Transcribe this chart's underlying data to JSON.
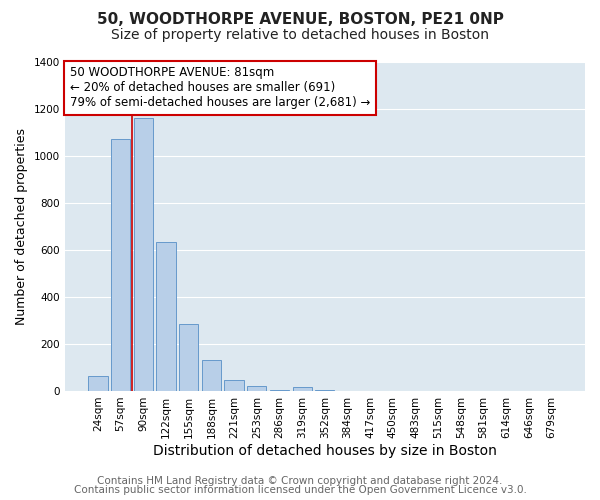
{
  "title_line1": "50, WOODTHORPE AVENUE, BOSTON, PE21 0NP",
  "title_line2": "Size of property relative to detached houses in Boston",
  "xlabel": "Distribution of detached houses by size in Boston",
  "ylabel": "Number of detached properties",
  "bar_labels": [
    "24sqm",
    "57sqm",
    "90sqm",
    "122sqm",
    "155sqm",
    "188sqm",
    "221sqm",
    "253sqm",
    "286sqm",
    "319sqm",
    "352sqm",
    "384sqm",
    "417sqm",
    "450sqm",
    "483sqm",
    "515sqm",
    "548sqm",
    "581sqm",
    "614sqm",
    "646sqm",
    "679sqm"
  ],
  "bar_values": [
    65,
    1070,
    1160,
    635,
    285,
    130,
    48,
    20,
    5,
    18,
    5,
    0,
    0,
    0,
    0,
    0,
    0,
    0,
    0,
    0,
    0
  ],
  "bar_color": "#b8cfe8",
  "bar_edge_color": "#6699cc",
  "ylim": [
    0,
    1400
  ],
  "yticks": [
    0,
    200,
    400,
    600,
    800,
    1000,
    1200,
    1400
  ],
  "vline_color": "#cc0000",
  "annotation_text": "50 WOODTHORPE AVENUE: 81sqm\n← 20% of detached houses are smaller (691)\n79% of semi-detached houses are larger (2,681) →",
  "annotation_box_facecolor": "#ffffff",
  "annotation_box_edgecolor": "#cc0000",
  "footer_line1": "Contains HM Land Registry data © Crown copyright and database right 2024.",
  "footer_line2": "Contains public sector information licensed under the Open Government Licence v3.0.",
  "fig_bg_color": "#ffffff",
  "plot_bg_color": "#dde8f0",
  "grid_color": "#ffffff",
  "title_fontsize": 11,
  "subtitle_fontsize": 10,
  "xlabel_fontsize": 10,
  "ylabel_fontsize": 9,
  "tick_fontsize": 7.5,
  "annotation_fontsize": 8.5,
  "footer_fontsize": 7.5
}
